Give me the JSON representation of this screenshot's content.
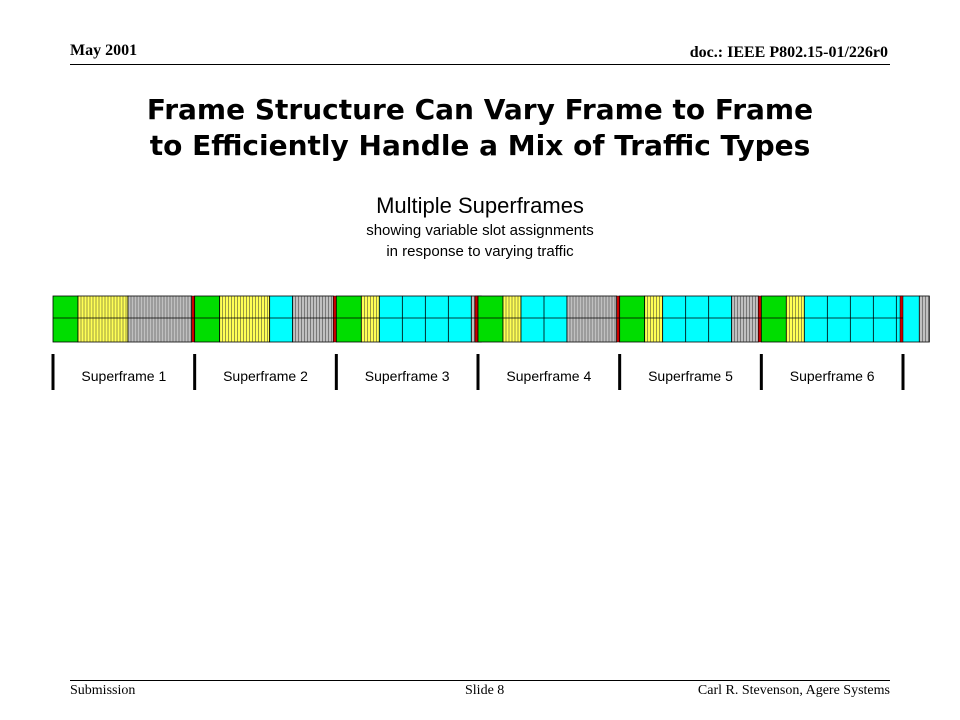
{
  "header": {
    "date": "May 2001",
    "doc": "doc.: IEEE P802.15-01/226r0"
  },
  "title": {
    "line1": "Frame Structure Can Vary Frame to Frame",
    "line2": "to Efficiently Handle a Mix of Traffic Types"
  },
  "caption": {
    "main": "Multiple Superframes",
    "sub1": "showing variable slot assignments",
    "sub2": "in response to varying traffic"
  },
  "colors": {
    "beacon": "#00dd00",
    "yellow": "#ffff55",
    "gray": "#c0c0c0",
    "cyan": "#00ffff",
    "red": "#cc0000"
  },
  "superframes": [
    {
      "label": "Superframe 1",
      "blocks": [
        {
          "type": "beacon",
          "n": 1
        },
        {
          "type": "yellow",
          "n": 1
        },
        {
          "type": "gray",
          "n": 1
        }
      ]
    },
    {
      "label": "Superframe 2",
      "blocks": [
        {
          "type": "beacon",
          "n": 1
        },
        {
          "type": "yellow",
          "n": 1
        },
        {
          "type": "cyan",
          "n": 1
        },
        {
          "type": "gray",
          "n": 1
        }
      ]
    },
    {
      "label": "Superframe 3",
      "blocks": [
        {
          "type": "beacon",
          "n": 1
        },
        {
          "type": "yellow",
          "n": 1
        },
        {
          "type": "cyan",
          "n": 4
        },
        {
          "type": "gray",
          "n": 1
        }
      ]
    },
    {
      "label": "Superframe 4",
      "blocks": [
        {
          "type": "beacon",
          "n": 1
        },
        {
          "type": "yellow",
          "n": 1
        },
        {
          "type": "cyan",
          "n": 2
        },
        {
          "type": "gray",
          "n": 1
        }
      ]
    },
    {
      "label": "Superframe 5",
      "blocks": [
        {
          "type": "beacon",
          "n": 1
        },
        {
          "type": "yellow",
          "n": 1
        },
        {
          "type": "cyan",
          "n": 3
        },
        {
          "type": "gray",
          "n": 1
        }
      ]
    },
    {
      "label": "Superframe 6",
      "blocks": [
        {
          "type": "beacon",
          "n": 1
        },
        {
          "type": "yellow",
          "n": 1
        },
        {
          "type": "cyan",
          "n": 5
        },
        {
          "type": "gray",
          "n": 1
        }
      ]
    }
  ],
  "footer": {
    "left": "Submission",
    "center": "Slide 8",
    "right": "Carl R. Stevenson, Agere Systems"
  }
}
